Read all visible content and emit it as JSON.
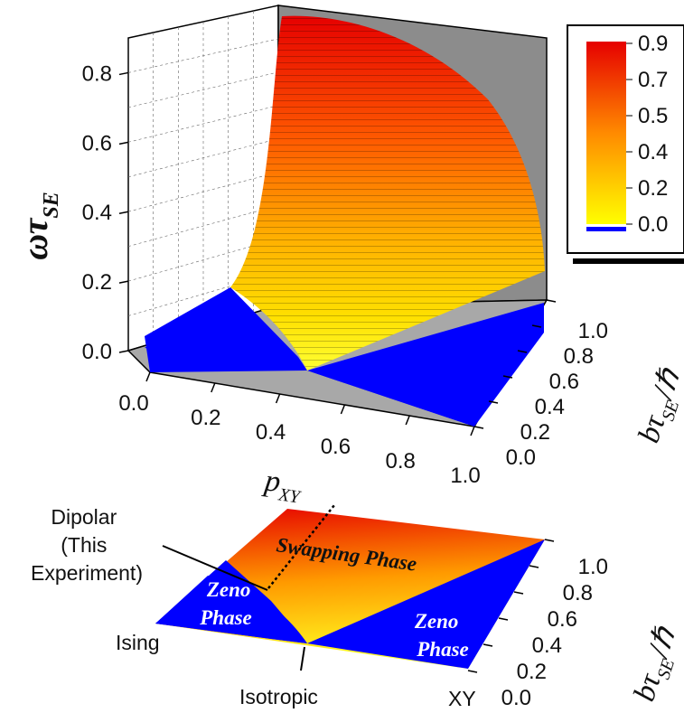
{
  "chart_data": [
    {
      "type": "surface",
      "zlabel": {
        "main": "ωτ",
        "sub": "SE"
      },
      "xlabel": {
        "main": "p",
        "sub": "XY"
      },
      "ylabel": {
        "main": "bτ",
        "sub": "SE",
        "suffix": "/ℏ"
      },
      "x_ticks": [
        "0.0",
        "0.2",
        "0.4",
        "0.6",
        "0.8",
        "1.0"
      ],
      "y_ticks": [
        "0.0",
        "0.2",
        "0.4",
        "0.6",
        "0.8",
        "1.0"
      ],
      "z_ticks": [
        "0.0",
        "0.2",
        "0.4",
        "0.6",
        "0.8"
      ],
      "xlim": [
        0,
        1
      ],
      "ylim": [
        0,
        1
      ],
      "zlim": [
        0,
        0.9
      ],
      "surface_function": "max(0, sqrt(b^2 - ((1 - 3p)/2)^2))",
      "surface_samples": {
        "p": [
          0.0,
          0.2,
          0.4,
          0.6,
          0.8,
          1.0
        ],
        "rows": [
          {
            "b": 0.0,
            "z": [
              0,
              0,
              0,
              0,
              0,
              0
            ]
          },
          {
            "b": 0.2,
            "z": [
              0,
              0.18,
              0.17,
              0,
              0,
              0
            ]
          },
          {
            "b": 0.4,
            "z": [
              0,
              0.39,
              0.39,
              0.2,
              0,
              0
            ]
          },
          {
            "b": 0.6,
            "z": [
              0,
              0.59,
              0.59,
              0.49,
              0.17,
              0
            ]
          },
          {
            "b": 0.8,
            "z": [
              0.6,
              0.8,
              0.79,
              0.73,
              0.56,
              0.0
            ]
          },
          {
            "b": 1.0,
            "z": [
              0.87,
              1.0,
              0.99,
              0.95,
              0.84,
              0.6
            ]
          }
        ]
      },
      "colorbar": {
        "labels": [
          "0.9",
          "0.7",
          "0.5",
          "0.4",
          "0.2",
          "0.0"
        ],
        "colors": [
          "#e60000",
          "#ff6600",
          "#ffcc00",
          "#ffff66",
          "#0000ff"
        ]
      }
    },
    {
      "type": "heatmap",
      "ylabel": {
        "main": "bτ",
        "sub": "SE",
        "suffix": "/ℏ"
      },
      "y_ticks": [
        "0.0",
        "0.2",
        "0.4",
        "0.6",
        "0.8",
        "1.0"
      ],
      "regions": [
        {
          "label_lines": [
            "Swapping Phase"
          ]
        },
        {
          "label_lines": [
            "Zeno",
            "Phase"
          ]
        },
        {
          "label_lines": [
            "Zeno",
            "Phase"
          ]
        }
      ],
      "annotations": {
        "dipolar": [
          "Dipolar",
          "(This",
          "Experiment)"
        ],
        "ising": "Ising",
        "isotropic": "Isotropic",
        "xy": "XY"
      }
    }
  ]
}
